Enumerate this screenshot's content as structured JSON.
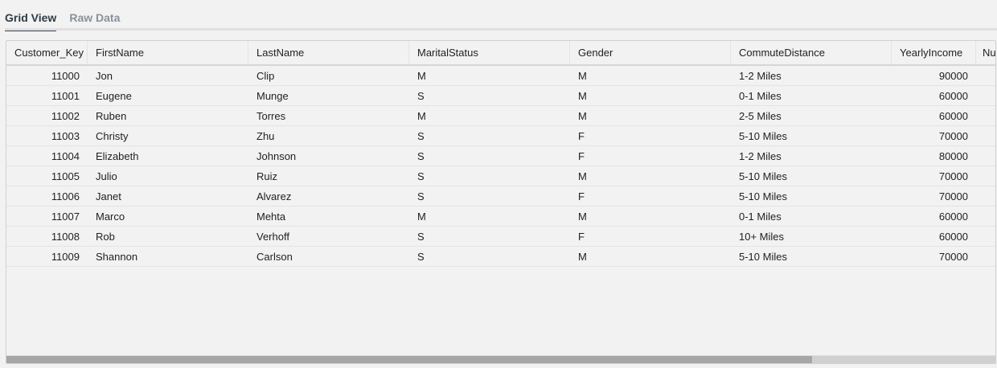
{
  "tabs": [
    {
      "label": "Grid View",
      "active": true
    },
    {
      "label": "Raw Data",
      "active": false
    }
  ],
  "grid": {
    "columns": [
      "Customer_Key",
      "FirstName",
      "LastName",
      "MaritalStatus",
      "Gender",
      "CommuteDistance",
      "YearlyIncome",
      "Nur"
    ],
    "rows": [
      [
        "11000",
        "Jon",
        "Clip",
        "M",
        "M",
        "1-2 Miles",
        "90000"
      ],
      [
        "11001",
        "Eugene",
        "Munge",
        "S",
        "M",
        "0-1 Miles",
        "60000"
      ],
      [
        "11002",
        "Ruben",
        "Torres",
        "M",
        "M",
        "2-5 Miles",
        "60000"
      ],
      [
        "11003",
        "Christy",
        "Zhu",
        "S",
        "F",
        "5-10 Miles",
        "70000"
      ],
      [
        "11004",
        "Elizabeth",
        "Johnson",
        "S",
        "F",
        "1-2 Miles",
        "80000"
      ],
      [
        "11005",
        "Julio",
        "Ruiz",
        "S",
        "M",
        "5-10 Miles",
        "70000"
      ],
      [
        "11006",
        "Janet",
        "Alvarez",
        "S",
        "F",
        "5-10 Miles",
        "70000"
      ],
      [
        "11007",
        "Marco",
        "Mehta",
        "M",
        "M",
        "0-1 Miles",
        "60000"
      ],
      [
        "11008",
        "Rob",
        "Verhoff",
        "S",
        "F",
        "10+ Miles",
        "60000"
      ],
      [
        "11009",
        "Shannon",
        "Carlson",
        "S",
        "M",
        "5-10 Miles",
        "70000"
      ]
    ],
    "horizontal_scroll_fraction": 0.815
  }
}
